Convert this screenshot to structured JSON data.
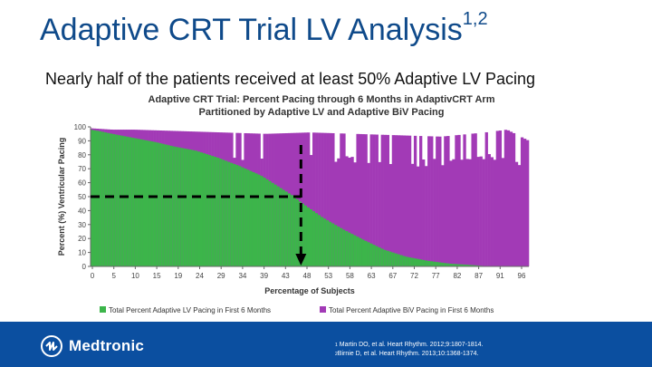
{
  "page": {
    "title": "Adaptive CRT Trial LV Analysis",
    "title_sup": "1,2",
    "subtitle": "Nearly half of the patients received at least 50% Adaptive LV Pacing"
  },
  "chart_data": {
    "type": "bar",
    "title_line1": "Adaptive CRT Trial: Percent Pacing through 6 Months in AdaptivCRT Arm",
    "title_line2": "Partitioned by Adaptive LV and Adaptive BiV Pacing",
    "xlabel": "Percentage of Subjects",
    "ylabel": "Percent (%) Ventricular Pacing",
    "ylim": [
      0,
      100
    ],
    "yticks": [
      0,
      10,
      20,
      30,
      40,
      50,
      60,
      70,
      80,
      90,
      100
    ],
    "xticks": [
      "0",
      "5",
      "10",
      "15",
      "19",
      "24",
      "29",
      "34",
      "39",
      "43",
      "48",
      "53",
      "58",
      "63",
      "67",
      "72",
      "77",
      "82",
      "87",
      "91",
      "96"
    ],
    "xlim": [
      0,
      100
    ],
    "series": [
      {
        "name": "Total Percent Adaptive LV Pacing in First 6 Months",
        "color": "#3cb54a",
        "x": [
          0,
          2,
          5,
          10,
          15,
          19,
          24,
          29,
          34,
          39,
          43,
          46,
          48,
          53,
          58,
          63,
          67,
          72,
          77,
          82,
          87,
          91,
          96,
          100
        ],
        "values": [
          98,
          97,
          95,
          92,
          89,
          86,
          83,
          78,
          72,
          65,
          57,
          51,
          46,
          35,
          26,
          18,
          12,
          7,
          4,
          2,
          1,
          0,
          0,
          0
        ]
      },
      {
        "name": "Total Percent Adaptive BiV Pacing in First 6 Months",
        "color": "#a23ab6",
        "x": [
          0,
          5,
          10,
          20,
          30,
          40,
          50,
          60,
          70,
          80,
          90,
          95,
          100
        ],
        "values": [
          99,
          98,
          98,
          97,
          96,
          95,
          96,
          95,
          94,
          93,
          96,
          98,
          90
        ]
      }
    ],
    "annotation": {
      "x": 48,
      "y": 50,
      "style": "dashed arrow"
    }
  },
  "footer": {
    "logo_text": "Medtronic",
    "ref1_num": "1",
    "ref1": "Martin DO, et al. Heart Rhythm. 2012;9:1807-1814.",
    "ref2_num": "2",
    "ref2": "Birnie D, et al. Heart Rhythm. 2013;10:1368-1374."
  },
  "colors": {
    "title": "#0f4a8a",
    "footer": "#0b4fa0",
    "green": "#3cb54a",
    "purple": "#a23ab6"
  }
}
